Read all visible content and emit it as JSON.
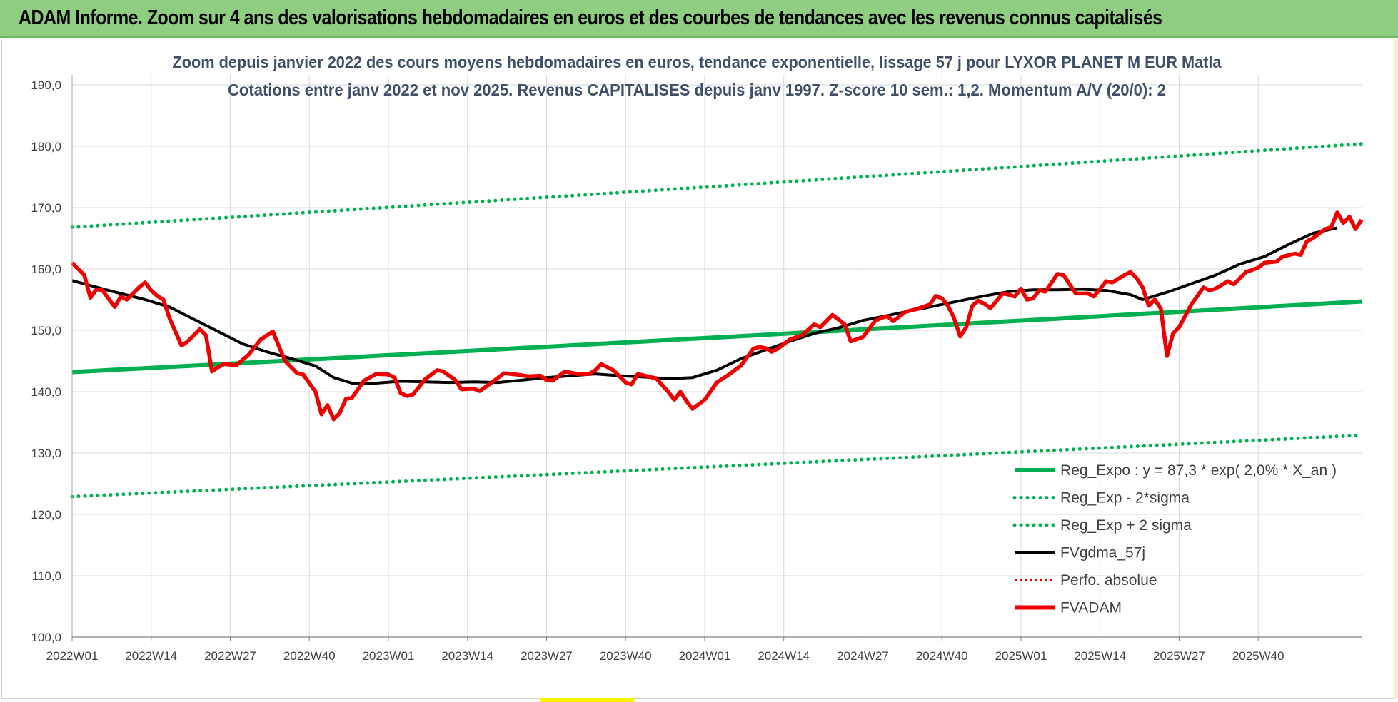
{
  "banner": {
    "text": "ADAM Informe. Zoom sur 4 ans des valorisations hebdomadaires en euros et des courbes de tendances avec les revenus connus capitalisés"
  },
  "colors": {
    "banner_bg": "#8fce80",
    "green": "#00b050",
    "black": "#000000",
    "red": "#ee0000",
    "grid": "#d9d9d9",
    "title": "#3f4f6a"
  },
  "chart_data": {
    "type": "line",
    "title_lines": [
      "Zoom depuis janvier 2022 des cours moyens hebdomadaires en euros, tendance exponentielle, lissage 57 j pour LYXOR PLANET M EUR Matla",
      "Cotations entre janv 2022 et nov 2025. Revenus CAPITALISES depuis janv 1997. Z-score 10 sem.: 1,2. Momentum A/V (20/0): 2"
    ],
    "ylim": [
      100,
      190
    ],
    "yticks": [
      "100,0",
      "110,0",
      "120,0",
      "130,0",
      "140,0",
      "150,0",
      "160,0",
      "170,0",
      "180,0",
      "190,0"
    ],
    "xticks": [
      "2022W01",
      "2022W14",
      "2022W27",
      "2022W40",
      "2023W01",
      "2023W14",
      "2023W27",
      "2023W40",
      "2024W01",
      "2024W14",
      "2024W27",
      "2024W40",
      "2025W01",
      "2025W14",
      "2025W27",
      "2025W40"
    ],
    "x_total_weeks": 208,
    "legend": [
      {
        "label": "Reg_Expo : y = 87,3 * exp( 2,0% *  X_an )",
        "style": "solid-green"
      },
      {
        "label": "Reg_Exp - 2*sigma",
        "style": "dotted-green"
      },
      {
        "label": "Reg_Exp + 2 sigma",
        "style": "dotted-green"
      },
      {
        "label": "FVgdma_57j",
        "style": "solid-black"
      },
      {
        "label": "Perfo. absolue",
        "style": "dotted-red"
      },
      {
        "label": "FVADAM",
        "style": "solid-red"
      }
    ],
    "series": [
      {
        "name": "Reg_Expo",
        "start": 143.2,
        "end": 154.7
      },
      {
        "name": "Reg_Exp - 2*sigma",
        "start": 122.9,
        "end": 132.9
      },
      {
        "name": "Reg_Exp + 2 sigma",
        "start": 166.8,
        "end": 180.4
      },
      {
        "name": "FVgdma_57j",
        "points": [
          [
            0,
            158.1
          ],
          [
            6,
            156.5
          ],
          [
            12,
            155.0
          ],
          [
            16,
            153.8
          ],
          [
            20,
            151.8
          ],
          [
            24,
            149.8
          ],
          [
            28,
            147.8
          ],
          [
            32,
            146.5
          ],
          [
            36,
            145.4
          ],
          [
            40,
            144.2
          ],
          [
            43,
            142.3
          ],
          [
            46,
            141.4
          ],
          [
            50,
            141.4
          ],
          [
            54,
            141.7
          ],
          [
            58,
            141.6
          ],
          [
            62,
            141.5
          ],
          [
            66,
            141.6
          ],
          [
            70,
            141.5
          ],
          [
            74,
            141.9
          ],
          [
            78,
            142.3
          ],
          [
            82,
            142.6
          ],
          [
            86,
            142.9
          ],
          [
            90,
            142.6
          ],
          [
            94,
            142.4
          ],
          [
            98,
            142.1
          ],
          [
            102,
            142.3
          ],
          [
            106,
            143.5
          ],
          [
            110,
            145.4
          ],
          [
            114,
            146.8
          ],
          [
            118,
            148.2
          ],
          [
            122,
            149.5
          ],
          [
            126,
            150.4
          ],
          [
            130,
            151.6
          ],
          [
            134,
            152.4
          ],
          [
            138,
            153.2
          ],
          [
            142,
            154.0
          ],
          [
            146,
            154.8
          ],
          [
            150,
            155.6
          ],
          [
            154,
            156.3
          ],
          [
            158,
            156.6
          ],
          [
            162,
            156.6
          ],
          [
            166,
            156.7
          ],
          [
            170,
            156.5
          ],
          [
            174,
            155.8
          ],
          [
            176,
            155.0
          ],
          [
            180,
            156.2
          ],
          [
            184,
            157.6
          ],
          [
            188,
            159.0
          ],
          [
            192,
            160.8
          ],
          [
            196,
            162.0
          ],
          [
            200,
            164.0
          ],
          [
            204,
            165.8
          ],
          [
            208,
            166.7
          ]
        ]
      },
      {
        "name": "FVADAM",
        "points": [
          [
            0,
            161.0
          ],
          [
            2,
            159.0
          ],
          [
            3,
            155.3
          ],
          [
            4,
            156.7
          ],
          [
            5,
            156.5
          ],
          [
            7,
            153.8
          ],
          [
            8,
            155.5
          ],
          [
            9,
            155.0
          ],
          [
            11,
            157.0
          ],
          [
            12,
            157.8
          ],
          [
            13,
            156.5
          ],
          [
            14,
            155.6
          ],
          [
            15,
            155.0
          ],
          [
            16,
            152.0
          ],
          [
            18,
            147.5
          ],
          [
            19,
            148.2
          ],
          [
            21,
            150.2
          ],
          [
            22,
            149.2
          ],
          [
            23,
            143.3
          ],
          [
            24,
            144.0
          ],
          [
            25,
            144.5
          ],
          [
            27,
            144.3
          ],
          [
            29,
            146.0
          ],
          [
            31,
            148.5
          ],
          [
            33,
            149.8
          ],
          [
            35,
            145.0
          ],
          [
            37,
            143.0
          ],
          [
            38,
            142.8
          ],
          [
            40,
            140.0
          ],
          [
            41,
            136.3
          ],
          [
            42,
            137.8
          ],
          [
            43,
            135.5
          ],
          [
            44,
            136.5
          ],
          [
            45,
            138.8
          ],
          [
            46,
            139.0
          ],
          [
            48,
            141.8
          ],
          [
            50,
            142.9
          ],
          [
            52,
            142.8
          ],
          [
            53,
            142.3
          ],
          [
            54,
            139.8
          ],
          [
            55,
            139.3
          ],
          [
            56,
            139.5
          ],
          [
            58,
            142.0
          ],
          [
            60,
            143.5
          ],
          [
            61,
            143.3
          ],
          [
            63,
            141.9
          ],
          [
            64,
            140.4
          ],
          [
            66,
            140.5
          ],
          [
            67,
            140.1
          ],
          [
            69,
            141.5
          ],
          [
            71,
            143.0
          ],
          [
            73,
            142.8
          ],
          [
            75,
            142.5
          ],
          [
            77,
            142.6
          ],
          [
            78,
            141.9
          ],
          [
            79,
            141.8
          ],
          [
            81,
            143.3
          ],
          [
            83,
            142.9
          ],
          [
            85,
            142.9
          ],
          [
            86,
            143.5
          ],
          [
            87,
            144.5
          ],
          [
            89,
            143.5
          ],
          [
            91,
            141.5
          ],
          [
            92,
            141.2
          ],
          [
            93,
            142.9
          ],
          [
            95,
            142.4
          ],
          [
            96,
            142.2
          ],
          [
            98,
            140.0
          ],
          [
            99,
            138.7
          ],
          [
            100,
            140.0
          ],
          [
            101,
            138.5
          ],
          [
            102,
            137.2
          ],
          [
            104,
            138.7
          ],
          [
            106,
            141.5
          ],
          [
            108,
            142.8
          ],
          [
            110,
            144.3
          ],
          [
            112,
            147.0
          ],
          [
            113,
            147.3
          ],
          [
            114,
            147.1
          ],
          [
            115,
            146.5
          ],
          [
            116,
            147.0
          ],
          [
            118,
            148.5
          ],
          [
            120,
            149.2
          ],
          [
            122,
            151.0
          ],
          [
            123,
            150.5
          ],
          [
            124,
            151.5
          ],
          [
            125,
            152.5
          ],
          [
            127,
            151.0
          ],
          [
            128,
            148.2
          ],
          [
            130,
            148.9
          ],
          [
            132,
            151.5
          ],
          [
            133,
            152.0
          ],
          [
            134,
            152.3
          ],
          [
            135,
            151.5
          ],
          [
            137,
            153.0
          ],
          [
            139,
            153.5
          ],
          [
            141,
            154.2
          ],
          [
            142,
            155.6
          ],
          [
            143,
            155.2
          ],
          [
            144,
            154.0
          ],
          [
            145,
            152.0
          ],
          [
            146,
            149.0
          ],
          [
            147,
            150.5
          ],
          [
            148,
            154.0
          ],
          [
            149,
            154.8
          ],
          [
            150,
            154.3
          ],
          [
            151,
            153.6
          ],
          [
            153,
            156.0
          ],
          [
            154,
            155.8
          ],
          [
            155,
            155.5
          ],
          [
            156,
            156.8
          ],
          [
            157,
            155.0
          ],
          [
            158,
            155.2
          ],
          [
            159,
            156.5
          ],
          [
            160,
            156.3
          ],
          [
            162,
            159.2
          ],
          [
            163,
            159.0
          ],
          [
            164,
            157.5
          ],
          [
            165,
            156.0
          ],
          [
            167,
            156.0
          ],
          [
            168,
            155.5
          ],
          [
            170,
            158.0
          ],
          [
            171,
            157.8
          ],
          [
            173,
            159.0
          ],
          [
            174,
            159.5
          ],
          [
            175,
            158.5
          ],
          [
            176,
            157.0
          ],
          [
            177,
            154.0
          ],
          [
            178,
            155.0
          ],
          [
            179,
            153.5
          ],
          [
            180,
            145.8
          ],
          [
            181,
            149.5
          ],
          [
            182,
            150.5
          ],
          [
            184,
            154.2
          ],
          [
            186,
            157.0
          ],
          [
            187,
            156.5
          ],
          [
            188,
            156.8
          ],
          [
            190,
            158.0
          ],
          [
            191,
            157.5
          ],
          [
            193,
            159.5
          ],
          [
            195,
            160.2
          ],
          [
            196,
            161.0
          ],
          [
            198,
            161.2
          ],
          [
            199,
            162.0
          ],
          [
            201,
            162.5
          ],
          [
            202,
            162.3
          ],
          [
            203,
            164.5
          ],
          [
            204,
            165.0
          ],
          [
            206,
            166.5
          ],
          [
            207,
            166.8
          ],
          [
            208,
            169.2
          ],
          [
            209,
            167.5
          ],
          [
            210,
            168.5
          ],
          [
            211,
            166.5
          ],
          [
            212,
            168.0
          ]
        ]
      }
    ]
  }
}
